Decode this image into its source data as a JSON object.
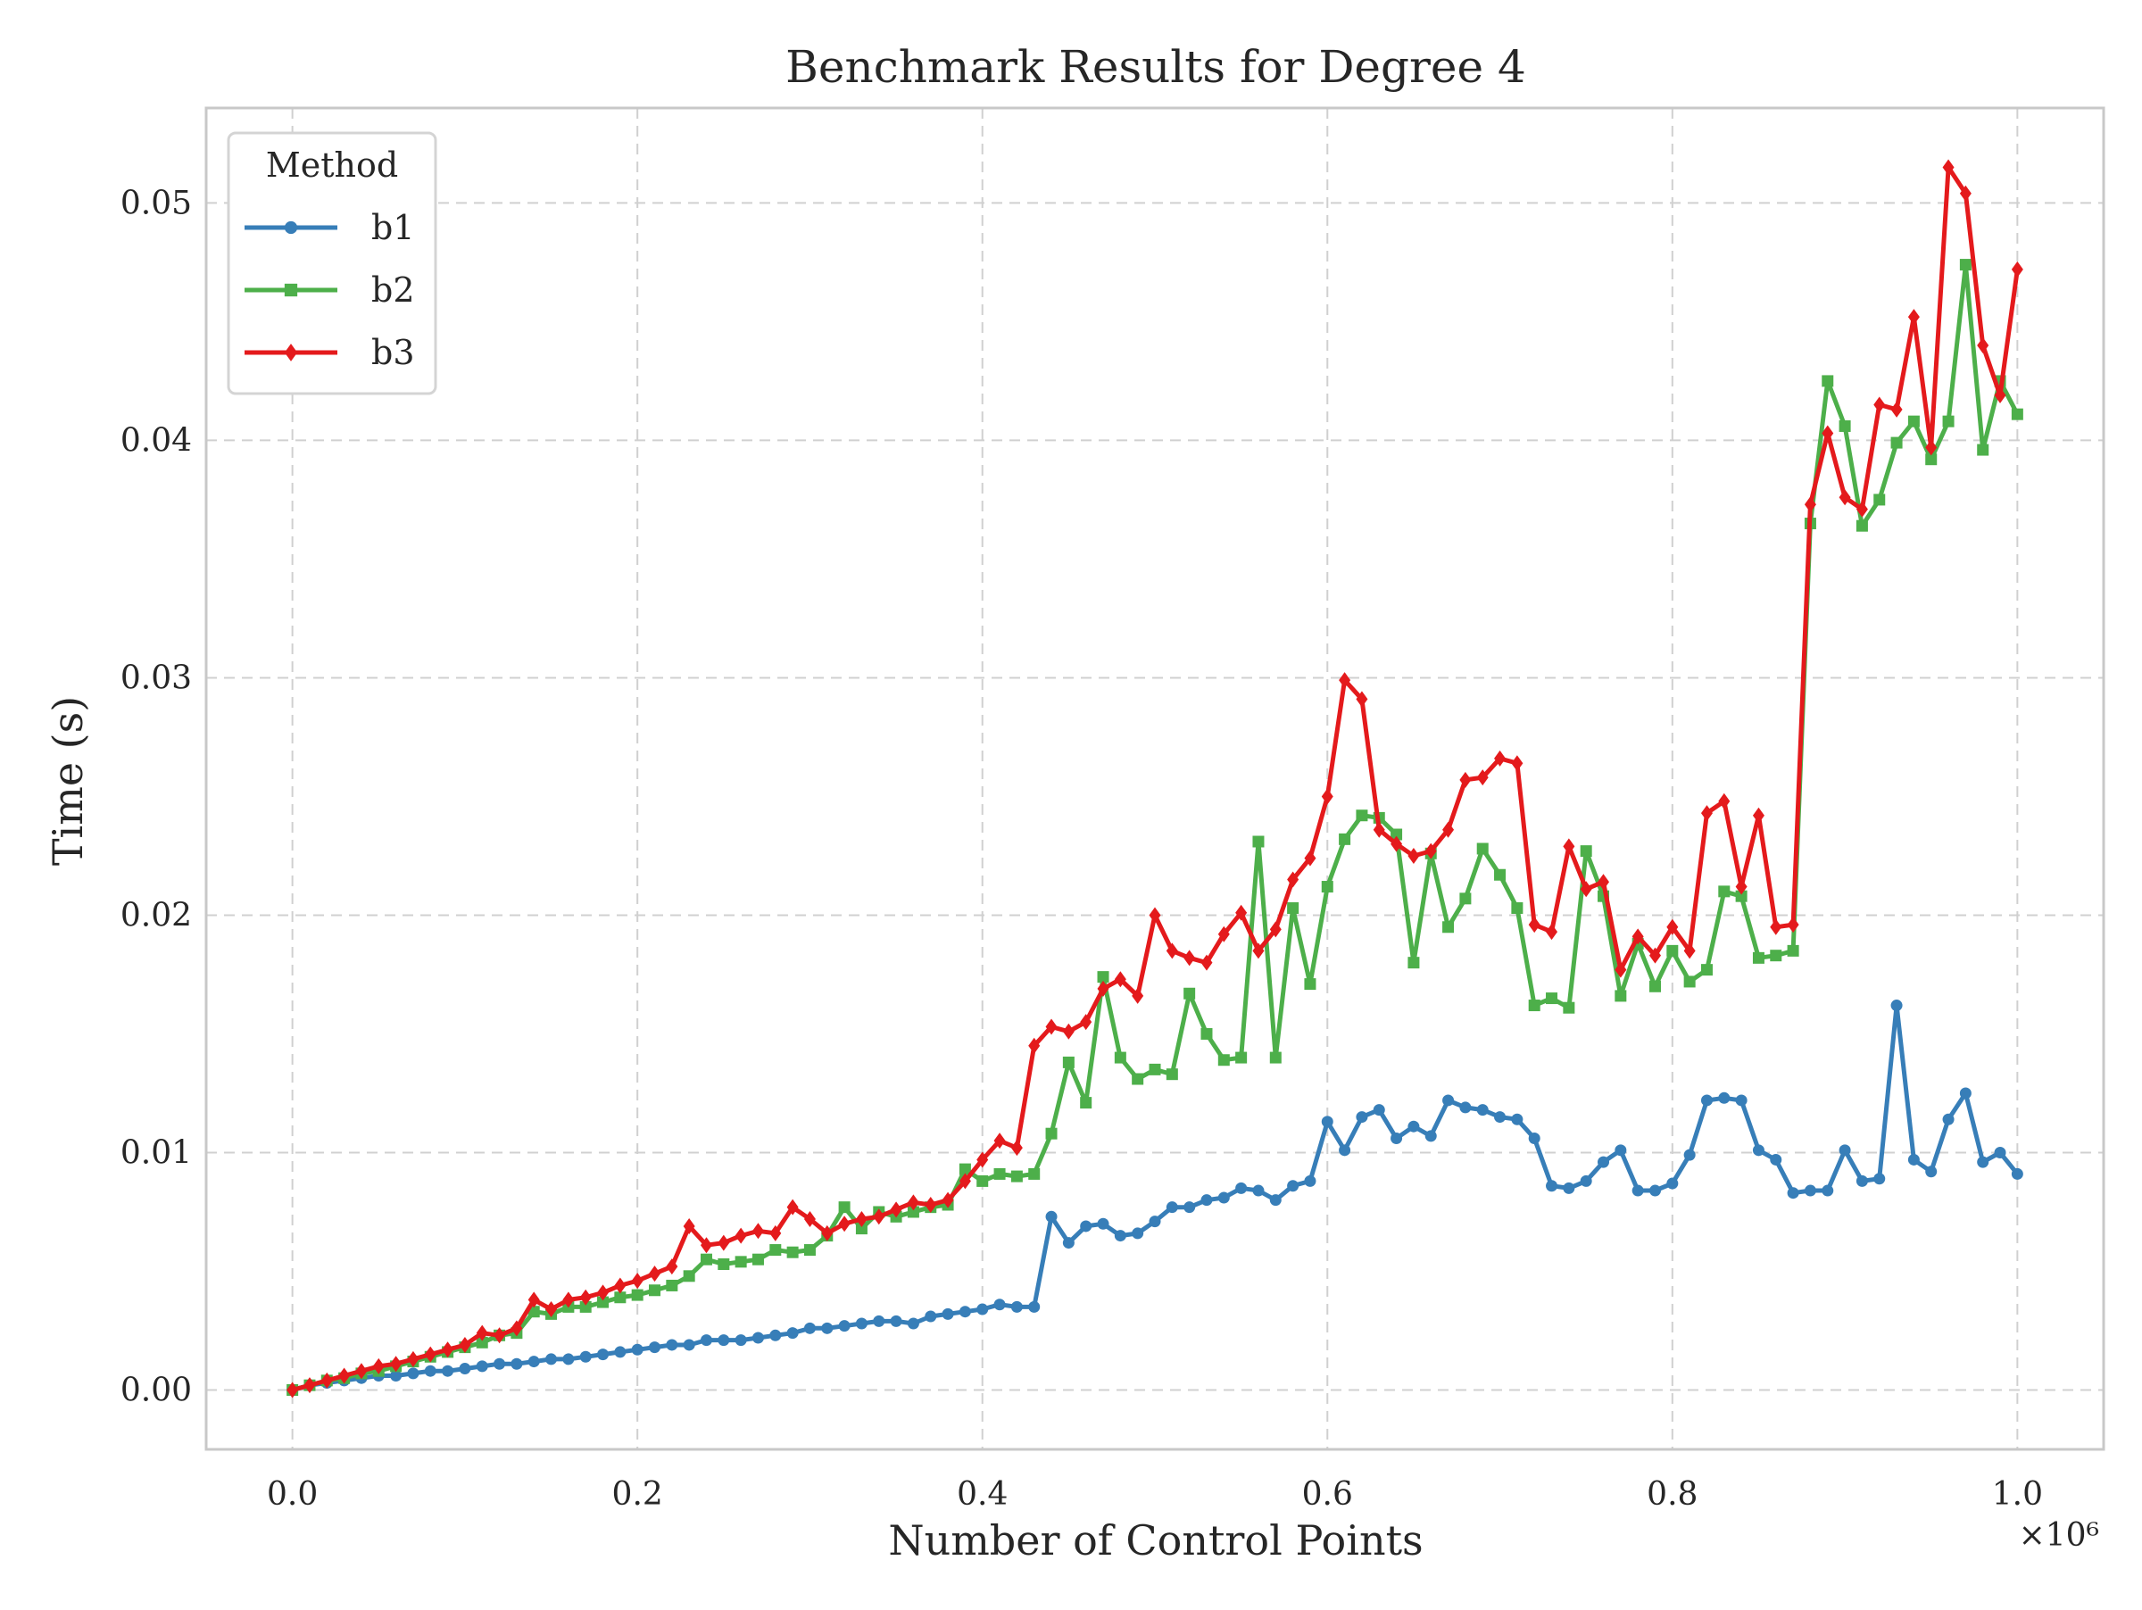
{
  "chart_data": {
    "type": "line",
    "title": "Benchmark Results for Degree 4",
    "xlabel": "Number of Control Points",
    "ylabel": "Time (s)",
    "x_offset_label": "×10⁶",
    "xlim": [
      -0.05,
      1.05
    ],
    "ylim": [
      -0.0025,
      0.054
    ],
    "xticks": [
      0.0,
      0.2,
      0.4,
      0.6,
      0.8,
      1.0
    ],
    "xtick_labels": [
      "0.0",
      "0.2",
      "0.4",
      "0.6",
      "0.8",
      "1.0"
    ],
    "yticks": [
      0.0,
      0.01,
      0.02,
      0.03,
      0.04,
      0.05
    ],
    "ytick_labels": [
      "0.00",
      "0.01",
      "0.02",
      "0.03",
      "0.04",
      "0.05"
    ],
    "grid": true,
    "legend": {
      "title": "Method",
      "placement": "top-left"
    },
    "x": [
      0.0,
      0.01,
      0.02,
      0.03,
      0.04,
      0.05,
      0.06,
      0.07,
      0.08,
      0.09,
      0.1,
      0.11,
      0.12,
      0.13,
      0.14,
      0.15,
      0.16,
      0.17,
      0.18,
      0.19,
      0.2,
      0.21,
      0.22,
      0.23,
      0.24,
      0.25,
      0.26,
      0.27,
      0.28,
      0.29,
      0.3,
      0.31,
      0.32,
      0.33,
      0.34,
      0.35,
      0.36,
      0.37,
      0.38,
      0.39,
      0.4,
      0.41,
      0.42,
      0.43,
      0.44,
      0.45,
      0.46,
      0.47,
      0.48,
      0.49,
      0.5,
      0.51,
      0.52,
      0.53,
      0.54,
      0.55,
      0.56,
      0.57,
      0.58,
      0.59,
      0.6,
      0.61,
      0.62,
      0.63,
      0.64,
      0.65,
      0.66,
      0.67,
      0.68,
      0.69,
      0.7,
      0.71,
      0.72,
      0.73,
      0.74,
      0.75,
      0.76,
      0.77,
      0.78,
      0.79,
      0.8,
      0.81,
      0.82,
      0.83,
      0.84,
      0.85,
      0.86,
      0.87,
      0.88,
      0.89,
      0.9,
      0.91,
      0.92,
      0.93,
      0.94,
      0.95,
      0.96,
      0.97,
      0.98,
      0.99,
      1.0
    ],
    "series": [
      {
        "name": "b1",
        "color": "#377eb8",
        "marker": "circle",
        "values": [
          0.0,
          0.0002,
          0.0003,
          0.0004,
          0.0005,
          0.0006,
          0.0006,
          0.0007,
          0.0008,
          0.0008,
          0.0009,
          0.001,
          0.0011,
          0.0011,
          0.0012,
          0.0013,
          0.0013,
          0.0014,
          0.0015,
          0.0016,
          0.0017,
          0.0018,
          0.0019,
          0.0019,
          0.0021,
          0.0021,
          0.0021,
          0.0022,
          0.0023,
          0.0024,
          0.0026,
          0.0026,
          0.0027,
          0.0028,
          0.0029,
          0.0029,
          0.0028,
          0.0031,
          0.0032,
          0.0033,
          0.0034,
          0.0036,
          0.0035,
          0.0035,
          0.0073,
          0.0062,
          0.0069,
          0.007,
          0.0065,
          0.0066,
          0.0071,
          0.0077,
          0.0077,
          0.008,
          0.0081,
          0.0085,
          0.0084,
          0.008,
          0.0086,
          0.0088,
          0.0113,
          0.0101,
          0.0115,
          0.0118,
          0.0106,
          0.0111,
          0.0107,
          0.0122,
          0.0119,
          0.0118,
          0.0115,
          0.0114,
          0.0106,
          0.0086,
          0.0085,
          0.0088,
          0.0096,
          0.0101,
          0.0084,
          0.0084,
          0.0087,
          0.0099,
          0.0122,
          0.0123,
          0.0122,
          0.0101,
          0.0097,
          0.0083,
          0.0084,
          0.0084,
          0.0101,
          0.0088,
          0.0089,
          0.0162,
          0.0097,
          0.0092,
          0.0114,
          0.0125,
          0.0096,
          0.01,
          0.0091
        ]
      },
      {
        "name": "b2",
        "color": "#4daf4a",
        "marker": "square",
        "values": [
          0.0,
          0.0002,
          0.0004,
          0.0005,
          0.0007,
          0.0008,
          0.001,
          0.0012,
          0.0014,
          0.0016,
          0.0018,
          0.002,
          0.0023,
          0.0024,
          0.0033,
          0.0032,
          0.0035,
          0.0035,
          0.0037,
          0.0039,
          0.004,
          0.0042,
          0.0044,
          0.0048,
          0.0055,
          0.0053,
          0.0054,
          0.0055,
          0.0059,
          0.0058,
          0.0059,
          0.0065,
          0.0077,
          0.0068,
          0.0075,
          0.0073,
          0.0075,
          0.0077,
          0.0078,
          0.0093,
          0.0088,
          0.0091,
          0.009,
          0.0091,
          0.0108,
          0.0138,
          0.0121,
          0.0174,
          0.014,
          0.0131,
          0.0135,
          0.0133,
          0.0167,
          0.015,
          0.0139,
          0.014,
          0.0231,
          0.014,
          0.0203,
          0.0171,
          0.0212,
          0.0232,
          0.0242,
          0.0241,
          0.0234,
          0.018,
          0.0226,
          0.0195,
          0.0207,
          0.0228,
          0.0217,
          0.0203,
          0.0162,
          0.0165,
          0.0161,
          0.0227,
          0.0208,
          0.0166,
          0.0188,
          0.017,
          0.0185,
          0.0172,
          0.0177,
          0.021,
          0.0208,
          0.0182,
          0.0183,
          0.0185,
          0.0365,
          0.0425,
          0.0406,
          0.0364,
          0.0375,
          0.0399,
          0.0408,
          0.0392,
          0.0408,
          0.0474,
          0.0396,
          0.0425,
          0.0411
        ]
      },
      {
        "name": "b3",
        "color": "#e41a1c",
        "marker": "diamond",
        "values": [
          0.0,
          0.0002,
          0.0004,
          0.0006,
          0.0008,
          0.001,
          0.0011,
          0.0013,
          0.0015,
          0.0017,
          0.0019,
          0.0024,
          0.0023,
          0.0026,
          0.0038,
          0.0034,
          0.0038,
          0.0039,
          0.0041,
          0.0044,
          0.0046,
          0.0049,
          0.0052,
          0.0069,
          0.0061,
          0.0062,
          0.0065,
          0.0067,
          0.0066,
          0.0077,
          0.0072,
          0.0066,
          0.007,
          0.0072,
          0.0073,
          0.0076,
          0.0079,
          0.0078,
          0.008,
          0.0088,
          0.0097,
          0.0105,
          0.0102,
          0.0145,
          0.0153,
          0.0151,
          0.0155,
          0.0169,
          0.0173,
          0.0166,
          0.02,
          0.0185,
          0.0182,
          0.018,
          0.0192,
          0.0201,
          0.0185,
          0.0194,
          0.0215,
          0.0224,
          0.025,
          0.0299,
          0.0291,
          0.0236,
          0.023,
          0.0225,
          0.0227,
          0.0236,
          0.0257,
          0.0258,
          0.0266,
          0.0264,
          0.0196,
          0.0193,
          0.0229,
          0.0211,
          0.0214,
          0.0177,
          0.0191,
          0.0183,
          0.0195,
          0.0185,
          0.0243,
          0.0248,
          0.0212,
          0.0242,
          0.0195,
          0.0196,
          0.0373,
          0.0403,
          0.0376,
          0.0371,
          0.0415,
          0.0413,
          0.0452,
          0.0397,
          0.0515,
          0.0504,
          0.044,
          0.0419,
          0.0472
        ]
      }
    ]
  }
}
